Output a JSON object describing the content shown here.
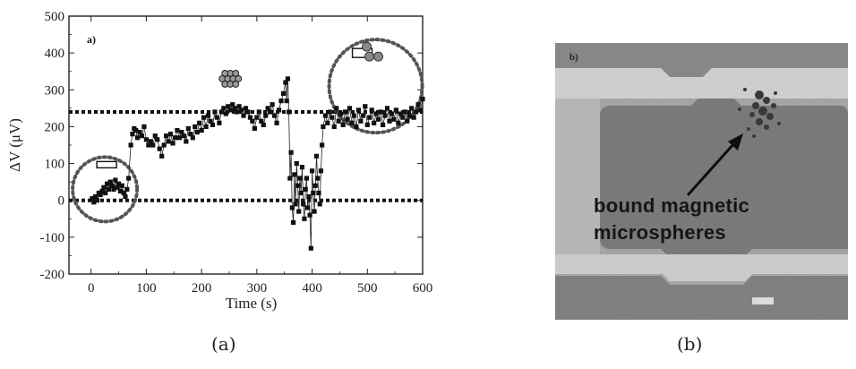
{
  "chart_data": [
    {
      "type": "scatter",
      "panel_tag": "a)",
      "xlabel": "Time (s)",
      "ylabel": "ΔV (μV)",
      "xlim": [
        -40,
        600
      ],
      "ylim": [
        -200,
        500
      ],
      "x_ticks": [
        0,
        100,
        200,
        300,
        400,
        500,
        600
      ],
      "y_ticks": [
        -200,
        -100,
        0,
        100,
        200,
        300,
        400,
        500
      ],
      "reference_lines_y": [
        0,
        240
      ],
      "grid": false,
      "series": [
        {
          "marker": "square",
          "connected": true,
          "points": [
            [
              2,
              5
            ],
            [
              5,
              -5
            ],
            [
              8,
              10
            ],
            [
              11,
              0
            ],
            [
              14,
              20
            ],
            [
              17,
              15
            ],
            [
              20,
              25
            ],
            [
              23,
              35
            ],
            [
              26,
              20
            ],
            [
              29,
              45
            ],
            [
              32,
              30
            ],
            [
              35,
              50
            ],
            [
              38,
              40
            ],
            [
              41,
              30
            ],
            [
              44,
              55
            ],
            [
              47,
              35
            ],
            [
              50,
              45
            ],
            [
              53,
              25
            ],
            [
              56,
              40
            ],
            [
              59,
              20
            ],
            [
              62,
              10
            ],
            [
              65,
              30
            ],
            [
              68,
              60
            ],
            [
              72,
              150
            ],
            [
              75,
              180
            ],
            [
              78,
              195
            ],
            [
              81,
              190
            ],
            [
              84,
              170
            ],
            [
              88,
              185
            ],
            [
              92,
              175
            ],
            [
              96,
              200
            ],
            [
              100,
              165
            ],
            [
              104,
              150
            ],
            [
              108,
              160
            ],
            [
              112,
              150
            ],
            [
              116,
              175
            ],
            [
              120,
              165
            ],
            [
              124,
              140
            ],
            [
              128,
              120
            ],
            [
              132,
              150
            ],
            [
              136,
              175
            ],
            [
              140,
              160
            ],
            [
              144,
              180
            ],
            [
              148,
              155
            ],
            [
              152,
              170
            ],
            [
              156,
              190
            ],
            [
              160,
              170
            ],
            [
              164,
              185
            ],
            [
              168,
              175
            ],
            [
              172,
              160
            ],
            [
              176,
              195
            ],
            [
              180,
              180
            ],
            [
              184,
              170
            ],
            [
              188,
              200
            ],
            [
              192,
              185
            ],
            [
              196,
              210
            ],
            [
              200,
              190
            ],
            [
              204,
              225
            ],
            [
              208,
              200
            ],
            [
              212,
              230
            ],
            [
              216,
              215
            ],
            [
              220,
              205
            ],
            [
              224,
              240
            ],
            [
              228,
              225
            ],
            [
              232,
              210
            ],
            [
              236,
              240
            ],
            [
              240,
              250
            ],
            [
              244,
              235
            ],
            [
              248,
              255
            ],
            [
              252,
              245
            ],
            [
              256,
              260
            ],
            [
              260,
              250
            ],
            [
              264,
              240
            ],
            [
              268,
              255
            ],
            [
              272,
              245
            ],
            [
              276,
              230
            ],
            [
              280,
              250
            ],
            [
              284,
              240
            ],
            [
              288,
              225
            ],
            [
              292,
              215
            ],
            [
              296,
              195
            ],
            [
              300,
              225
            ],
            [
              304,
              240
            ],
            [
              308,
              215
            ],
            [
              312,
              205
            ],
            [
              316,
              230
            ],
            [
              320,
              250
            ],
            [
              324,
              240
            ],
            [
              328,
              260
            ],
            [
              332,
              230
            ],
            [
              336,
              210
            ],
            [
              340,
              245
            ],
            [
              344,
              270
            ],
            [
              348,
              290
            ],
            [
              352,
              320
            ],
            [
              354,
              270
            ],
            [
              356,
              330
            ],
            [
              358,
              240
            ],
            [
              360,
              60
            ],
            [
              362,
              130
            ],
            [
              364,
              -20
            ],
            [
              366,
              -60
            ],
            [
              368,
              70
            ],
            [
              370,
              -10
            ],
            [
              372,
              100
            ],
            [
              374,
              40
            ],
            [
              376,
              -30
            ],
            [
              378,
              60
            ],
            [
              380,
              20
            ],
            [
              382,
              90
            ],
            [
              384,
              -10
            ],
            [
              386,
              -50
            ],
            [
              388,
              30
            ],
            [
              390,
              60
            ],
            [
              392,
              -20
            ],
            [
              394,
              10
            ],
            [
              396,
              -40
            ],
            [
              398,
              -130
            ],
            [
              400,
              80
            ],
            [
              402,
              20
            ],
            [
              404,
              -30
            ],
            [
              406,
              40
            ],
            [
              408,
              120
            ],
            [
              410,
              60
            ],
            [
              412,
              20
            ],
            [
              414,
              -10
            ],
            [
              416,
              80
            ],
            [
              418,
              150
            ],
            [
              420,
              200
            ],
            [
              424,
              230
            ],
            [
              428,
              210
            ],
            [
              432,
              240
            ],
            [
              436,
              225
            ],
            [
              440,
              200
            ],
            [
              444,
              250
            ],
            [
              448,
              215
            ],
            [
              452,
              235
            ],
            [
              456,
              205
            ],
            [
              460,
              240
            ],
            [
              464,
              220
            ],
            [
              468,
              250
            ],
            [
              472,
              210
            ],
            [
              476,
              230
            ],
            [
              480,
              200
            ],
            [
              484,
              245
            ],
            [
              488,
              215
            ],
            [
              492,
              230
            ],
            [
              496,
              255
            ],
            [
              500,
              205
            ],
            [
              504,
              225
            ],
            [
              508,
              245
            ],
            [
              512,
              210
            ],
            [
              516,
              235
            ],
            [
              520,
              220
            ],
            [
              524,
              240
            ],
            [
              528,
              205
            ],
            [
              532,
              230
            ],
            [
              536,
              250
            ],
            [
              540,
              215
            ],
            [
              544,
              235
            ],
            [
              548,
              220
            ],
            [
              552,
              245
            ],
            [
              556,
              210
            ],
            [
              560,
              235
            ],
            [
              564,
              225
            ],
            [
              568,
              240
            ],
            [
              572,
              215
            ],
            [
              576,
              230
            ],
            [
              580,
              250
            ],
            [
              584,
              225
            ],
            [
              588,
              240
            ],
            [
              592,
              260
            ],
            [
              596,
              245
            ],
            [
              600,
              275
            ]
          ]
        }
      ],
      "annotations": [
        {
          "kind": "dotted-circle",
          "center": [
            25,
            30
          ],
          "note": "empty sensor inset"
        },
        {
          "kind": "dotted-circle",
          "center": [
            515,
            310
          ],
          "note": "sensor with spheres inset"
        },
        {
          "kind": "hex-cluster-inset",
          "center": [
            252,
            330
          ]
        }
      ]
    }
  ],
  "photo": {
    "panel_tag": "b)",
    "label_line1": "bound magnetic",
    "label_line2": "microspheres"
  },
  "captions": {
    "left": "(a)",
    "right": "(b)"
  }
}
